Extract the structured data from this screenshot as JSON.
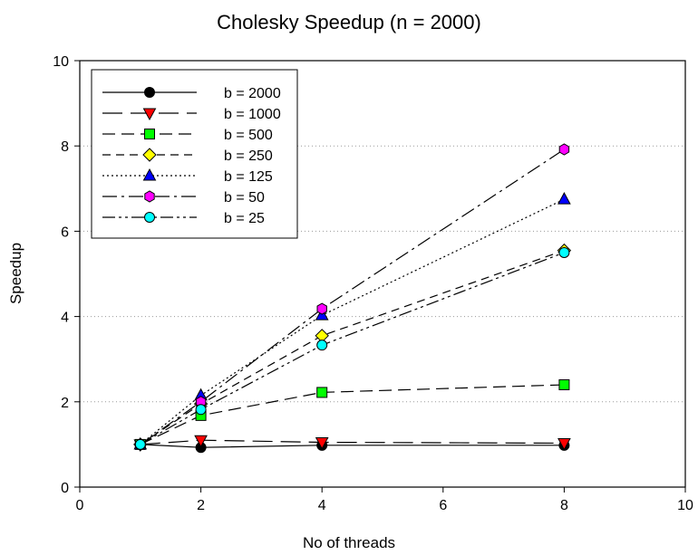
{
  "chart_data": {
    "type": "line",
    "title": "Cholesky Speedup (n = 2000)",
    "xlabel": "No of threads",
    "ylabel": "Speedup",
    "xlim": [
      0,
      10
    ],
    "ylim": [
      0,
      10
    ],
    "xticks": [
      0,
      2,
      4,
      6,
      8,
      10
    ],
    "yticks": [
      0,
      2,
      4,
      6,
      8,
      10
    ],
    "grid": "horizontal dotted",
    "legend_position": "top-left",
    "x": [
      1,
      2,
      4,
      8
    ],
    "series": [
      {
        "name": "b = 2000",
        "values": [
          1.0,
          0.93,
          0.98,
          0.98
        ],
        "marker": "circle",
        "color": "#000000",
        "dash": "solid"
      },
      {
        "name": "b = 1000",
        "values": [
          1.0,
          1.1,
          1.05,
          1.03
        ],
        "marker": "triangle-down",
        "color": "#ff0000",
        "dash": "long-dash"
      },
      {
        "name": "b = 500",
        "values": [
          1.0,
          1.68,
          2.22,
          2.4
        ],
        "marker": "square",
        "color": "#00ff00",
        "dash": "dash"
      },
      {
        "name": "b = 250",
        "values": [
          1.0,
          1.95,
          3.55,
          5.55
        ],
        "marker": "diamond",
        "color": "#ffff00",
        "dash": "medium-dash"
      },
      {
        "name": "b = 125",
        "values": [
          1.0,
          2.15,
          4.03,
          6.75
        ],
        "marker": "triangle-up",
        "color": "#0000ff",
        "dash": "dotted"
      },
      {
        "name": "b = 50",
        "values": [
          1.0,
          2.0,
          4.18,
          7.92
        ],
        "marker": "hexagon",
        "color": "#ff00ff",
        "dash": "dash-dot"
      },
      {
        "name": "b = 25",
        "values": [
          1.0,
          1.82,
          3.33,
          5.5
        ],
        "marker": "circle",
        "color": "#00ffff",
        "dash": "dash-dot-dot"
      }
    ]
  }
}
